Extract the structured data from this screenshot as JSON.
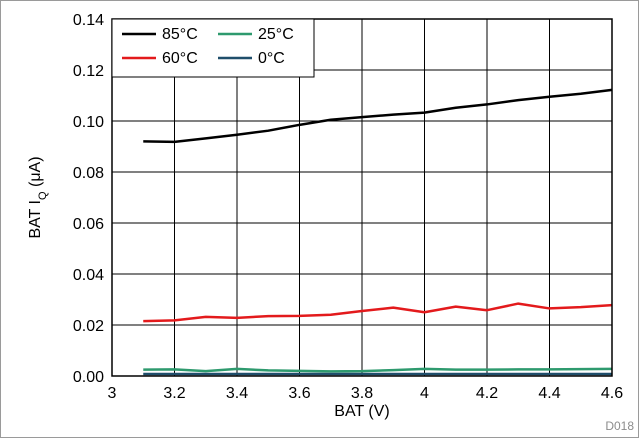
{
  "chart_data": {
    "type": "line",
    "xlabel": "BAT (V)",
    "ylabel_main": "BAT I",
    "ylabel_sub": "Q",
    "ylabel_unit": " (μA)",
    "xlim": [
      3,
      4.6
    ],
    "ylim": [
      0,
      0.14
    ],
    "x_ticks": [
      "3",
      "3.2",
      "3.4",
      "3.6",
      "3.8",
      "4",
      "4.2",
      "4.4",
      "4.6"
    ],
    "y_ticks": [
      "0.00",
      "0.02",
      "0.04",
      "0.06",
      "0.08",
      "0.10",
      "0.12",
      "0.14"
    ],
    "grid": true,
    "legend_position": "top-left",
    "corner_code": "D018",
    "x": [
      3.1,
      3.2,
      3.3,
      3.4,
      3.5,
      3.6,
      3.7,
      3.8,
      3.9,
      4.0,
      4.1,
      4.2,
      4.3,
      4.4,
      4.5,
      4.6
    ],
    "series": [
      {
        "name": "85°C",
        "color": "#000000",
        "values": [
          0.092,
          0.0918,
          0.0932,
          0.0946,
          0.0962,
          0.0985,
          0.1005,
          0.1015,
          0.1025,
          0.1033,
          0.1052,
          0.1065,
          0.1082,
          0.1095,
          0.1107,
          0.1122
        ]
      },
      {
        "name": "25°C",
        "color": "#2e9a6e",
        "values": [
          0.0025,
          0.0026,
          0.0019,
          0.0028,
          0.0022,
          0.002,
          0.0018,
          0.0019,
          0.0023,
          0.0028,
          0.0025,
          0.0025,
          0.0026,
          0.0026,
          0.0027,
          0.0028
        ]
      },
      {
        "name": "60°C",
        "color": "#e31a1c",
        "values": [
          0.0215,
          0.0218,
          0.0232,
          0.0228,
          0.0235,
          0.0236,
          0.024,
          0.0255,
          0.0268,
          0.025,
          0.0272,
          0.0258,
          0.0284,
          0.0265,
          0.027,
          0.0278
        ]
      },
      {
        "name": "0°C",
        "color": "#1f4e6b",
        "values": [
          0.0008,
          0.0008,
          0.0008,
          0.0008,
          0.0008,
          0.0008,
          0.0008,
          0.0008,
          0.0008,
          0.0008,
          0.0008,
          0.0008,
          0.0008,
          0.0008,
          0.0008,
          0.0008
        ]
      }
    ]
  }
}
